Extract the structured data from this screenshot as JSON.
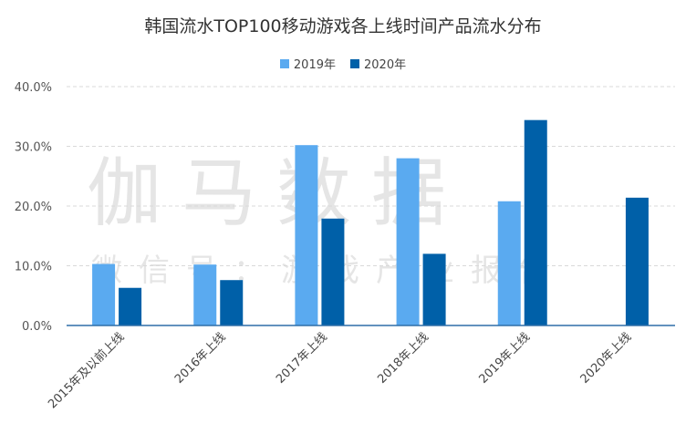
{
  "chart_data": {
    "type": "bar",
    "title": "韩国流水TOP100移动游戏各上线时间产品流水分布",
    "categories": [
      "2015年及以前上线",
      "2016年上线",
      "2017年上线",
      "2018年上线",
      "2019年上线",
      "2020年上线"
    ],
    "series": [
      {
        "name": "2019年",
        "color": "#5aaaf0",
        "values": [
          10.3,
          10.2,
          30.2,
          28.0,
          20.8,
          null
        ]
      },
      {
        "name": "2020年",
        "color": "#0060a8",
        "values": [
          6.3,
          7.6,
          17.9,
          12.0,
          34.4,
          21.4
        ]
      }
    ],
    "ylim": [
      0,
      40
    ],
    "yticks": [
      "0.0%",
      "10.0%",
      "20.0%",
      "30.0%",
      "40.0%"
    ],
    "grid": true,
    "legend": "top-center",
    "watermark": {
      "main": "伽马数据",
      "sub": "微信号：游戏产业报告"
    }
  }
}
